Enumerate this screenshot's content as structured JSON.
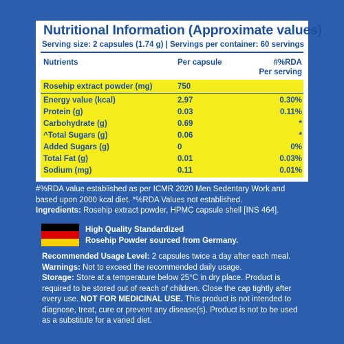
{
  "panel": {
    "title": "Nutritional Information (Approximate values)",
    "serving": "Serving size: 2 capsules (1.74 g)  |  Servings per container: 60 servings",
    "headers": {
      "nutrients": "Nutrients",
      "per_capsule": "Per capsule",
      "rda_line1": "#%RDA",
      "rda_line2": "Per serving"
    },
    "rows": [
      {
        "name": "Rosehip extract powder (mg)",
        "value": "750",
        "rda": ""
      },
      {
        "name": "Energy value (kcal)",
        "value": "2.97",
        "rda": "0.30%"
      },
      {
        "name": "Protein (g)",
        "value": "0.03",
        "rda": "0.11%"
      },
      {
        "name": "Carbohydrate (g)",
        "value": "0.69",
        "rda": "*"
      },
      {
        "name": "^Total Sugars (g)",
        "value": "0.06",
        "rda": "*"
      },
      {
        "name": "Added Sugars (g)",
        "value": "0",
        "rda": "0%"
      },
      {
        "name": "Total Fat (g)",
        "value": "0.01",
        "rda": "0.03%"
      },
      {
        "name": "Sodium (mg)",
        "value": "0.11",
        "rda": "0.01%"
      }
    ]
  },
  "notes": {
    "rda_line1": "#%RDA value established as per ICMR 2020 Men Sedentary Work and",
    "rda_line2": "based upon 2000 kcal diet. *%RDA Values not established.",
    "ingredients_label": "Ingredients:",
    "ingredients_text": " Rosehip extract powder, HPMC capsule shell [INS 464]."
  },
  "origin": {
    "line1": "High Quality Standardized",
    "line2": "Rosehip Powder sourced from Germany.",
    "flag_colors": [
      "#000000",
      "#dd0000",
      "#ffce00"
    ]
  },
  "usage": {
    "recommended_label": "Recommended Usage Level:",
    "recommended_text": " 2 capsules twice a day after each meal.",
    "warnings_label": "Warnings:",
    "warnings_text": " Not to exceed the recommended daily usage.",
    "storage_label": "Storage:",
    "storage_text1": " Store at a temperature below 25°C in dry place. Product is",
    "storage_text2": "required to be stored out of reach of children. Close the cap tightly after",
    "storage_text3a": "every use. ",
    "storage_bold": "NOT FOR MEDICINAL USE.",
    "storage_text3b": " This product is not intended to",
    "storage_text4": "diagnose, treat, cure or prevent any disease(s). Product is not to be used",
    "storage_text5": "as a substitute for a varied diet."
  },
  "colors": {
    "background": "#2b5fad",
    "title_blue": "#1c4fa0",
    "table_yellow": "#f5ec1c"
  }
}
